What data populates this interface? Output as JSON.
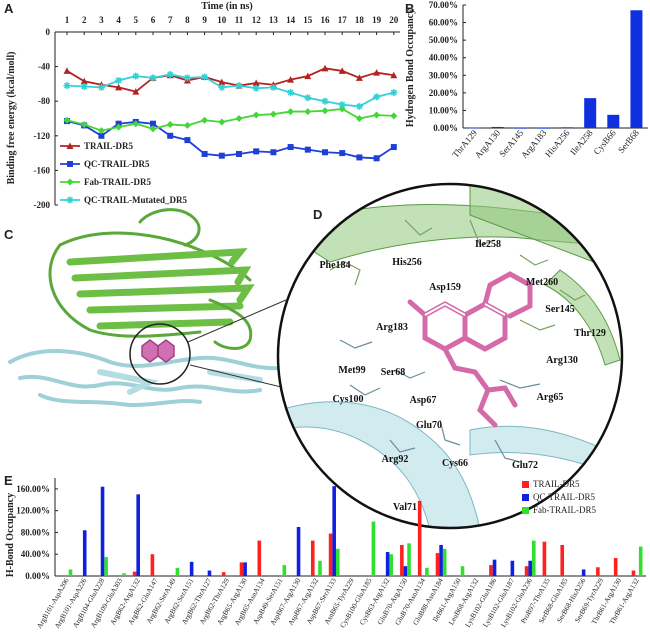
{
  "panels": {
    "a": "A",
    "b": "B",
    "c": "C",
    "d": "D",
    "e": "E"
  },
  "chart_data": [
    {
      "type": "line",
      "title": "Time (in ns)",
      "xlabel": "Time (in ns)",
      "ylabel": "Binding free energy (kcal/moll)",
      "x": [
        1,
        2,
        3,
        4,
        5,
        6,
        7,
        8,
        9,
        10,
        11,
        12,
        13,
        14,
        15,
        16,
        17,
        18,
        19,
        20
      ],
      "x_ticks": [
        "1",
        "2",
        "3",
        "4",
        "5",
        "6",
        "7",
        "8",
        "9",
        "10",
        "11",
        "12",
        "13",
        "14",
        "15",
        "16",
        "17",
        "18",
        "19",
        "20"
      ],
      "y_ticks": [
        "0",
        "-40",
        "-80",
        "-120",
        "-160",
        "-200"
      ],
      "ylim": [
        -200,
        0
      ],
      "series": [
        {
          "name": "TRAIL-DR5",
          "color": "#b22222",
          "marker": "triangle",
          "values": [
            -45,
            -57,
            -61,
            -64,
            -69,
            -53,
            -50,
            -56,
            -52,
            -58,
            -62,
            -59,
            -61,
            -55,
            -51,
            -42,
            -45,
            -53,
            -47,
            -50
          ]
        },
        {
          "name": "QC-TRAIL-DR5",
          "color": "#1f3fd6",
          "marker": "square",
          "values": [
            -103,
            -108,
            -120,
            -106,
            -104,
            -106,
            -120,
            -125,
            -141,
            -143,
            -141,
            -138,
            -139,
            -133,
            -136,
            -139,
            -140,
            -145,
            -146,
            -133
          ]
        },
        {
          "name": "Fab-TRAIL-DR5",
          "color": "#44d636",
          "marker": "diamond",
          "values": [
            -102,
            -107,
            -114,
            -110,
            -106,
            -112,
            -107,
            -108,
            -102,
            -104,
            -100,
            -96,
            -95,
            -92,
            -92,
            -91,
            -89,
            -100,
            -96,
            -97
          ]
        },
        {
          "name": "QC-TRAIL-Mutated_DR5",
          "color": "#33d0d6",
          "marker": "star",
          "values": [
            -62,
            -63,
            -64,
            -56,
            -51,
            -53,
            -49,
            -53,
            -52,
            -64,
            -62,
            -65,
            -64,
            -70,
            -76,
            -80,
            -84,
            -86,
            -75,
            -70
          ]
        }
      ]
    },
    {
      "type": "bar",
      "ylabel": "Hydrogen Bond Occupancy",
      "y_ticks": [
        "70.00%",
        "60.00%",
        "50.00%",
        "40.00%",
        "30.00%",
        "20.00%",
        "10.00%",
        "0.00%"
      ],
      "ylim": [
        0,
        70
      ],
      "color": "#1030e0",
      "categories": [
        "ThrA129",
        "ArgA130",
        "SerA145",
        "ArgA183",
        "HisA256",
        "IleA258",
        "CysB66",
        "SerB68"
      ],
      "values": [
        0.2,
        0.6,
        0.1,
        0.1,
        0.4,
        17.0,
        7.5,
        67.0
      ]
    },
    {
      "type": "bar",
      "ylabel": "H-Bond Occupancy",
      "y_ticks": [
        "160.00%",
        "120.00%",
        "80.00%",
        "40.00%",
        "0.00%"
      ],
      "ylim": [
        0,
        180
      ],
      "categories": [
        "ArgB101-AspA206",
        "ArgB101-AspA226",
        "ArgB104-GluA228",
        "ArgB109-GluA303",
        "ArgB62-ArgA132",
        "ArgB62-GluA147",
        "ArgB62-SerA149",
        "ArgB62-SerA151",
        "ArgB62-ThrA127",
        "ArgB62-ThrA129",
        "ArgB65-ArgA130",
        "ArgB65-AsnA134",
        "AspB49-SerA151",
        "AspB67-ArgA130",
        "AspB67-ArgA132",
        "AspB67-SerA133",
        "AsnB65-TyrA229",
        "CysB100-GluA185",
        "CysB63-ArgA132",
        "GluB70-ArgA150",
        "GluB70-AsnA134",
        "GluB88-AsnA184",
        "IleB61-ArgA150",
        "LeuB68-ArgA132",
        "LysB102-GluA186",
        "LysB102-GluA187",
        "LysB102-GluA236",
        "ProB97-ThrA135",
        "SerB68-GluA185",
        "SerB68-HisA256",
        "SerB69-TyrA229",
        "ThrB61-ArgA130",
        "ThrB61-ArgA132"
      ],
      "series": [
        {
          "name": "TRAIL-DR5",
          "color": "#ff2020",
          "values": [
            0,
            0,
            0,
            0,
            8,
            40,
            0,
            0,
            0,
            7,
            25,
            65,
            0,
            0,
            65,
            78,
            0,
            0,
            0,
            57,
            138,
            42,
            0,
            0,
            20,
            0,
            18,
            63,
            57,
            0,
            16,
            33,
            10
          ]
        },
        {
          "name": "QC-TRAIL-DR5",
          "color": "#1020e0",
          "values": [
            0,
            84,
            164,
            0,
            150,
            0,
            0,
            26,
            10,
            0,
            25,
            0,
            0,
            90,
            0,
            165,
            0,
            0,
            44,
            18,
            0,
            57,
            0,
            0,
            30,
            28,
            28,
            0,
            0,
            12,
            0,
            0,
            0
          ]
        },
        {
          "name": "Fab-TRAIL-DR5",
          "color": "#30e030",
          "values": [
            12,
            0,
            35,
            5,
            0,
            0,
            15,
            0,
            0,
            0,
            0,
            0,
            20,
            0,
            28,
            50,
            0,
            100,
            40,
            60,
            15,
            50,
            18,
            0,
            0,
            0,
            65,
            0,
            0,
            0,
            0,
            0,
            54
          ]
        }
      ]
    }
  ],
  "structure": {
    "residues": [
      "Ile258",
      "Phe184",
      "His256",
      "Met260",
      "Ser145",
      "Asp159",
      "Thr129",
      "Arg183",
      "Arg130",
      "Met99",
      "Ser68",
      "Cys100",
      "Asp67",
      "Arg65",
      "Glu70",
      "Arg92",
      "Cys66",
      "Glu72",
      "Val71"
    ]
  }
}
